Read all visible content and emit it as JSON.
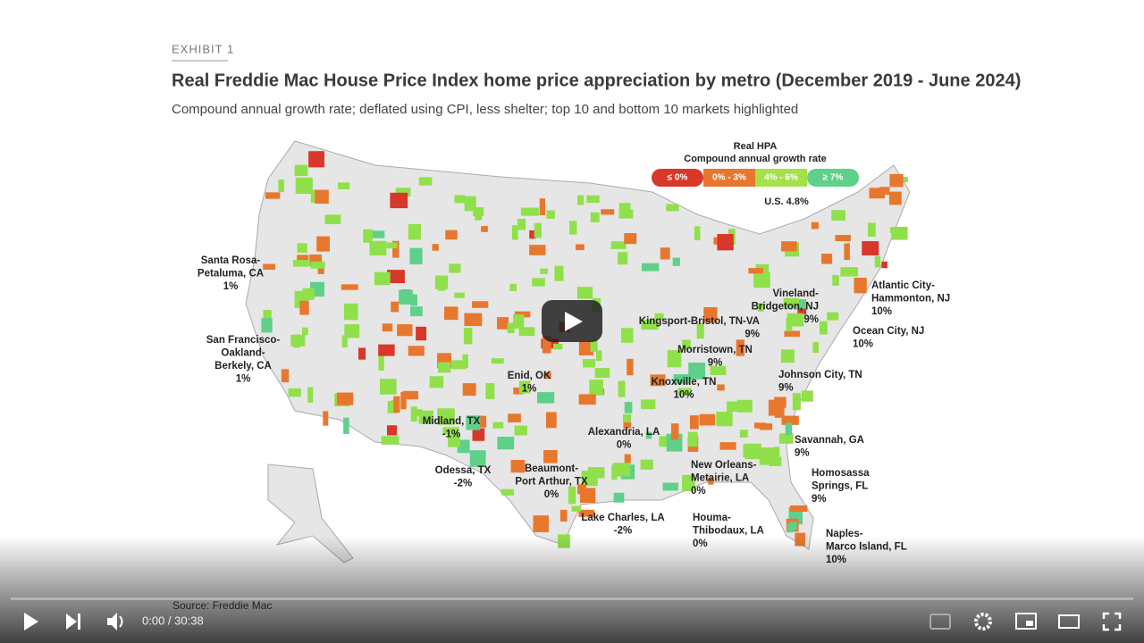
{
  "exhibit": "EXHIBIT 1",
  "title": "Real Freddie Mac House Price Index home price appreciation by metro (December 2019 - June 2024)",
  "subtitle": "Compound annual growth rate; deflated using CPI, less shelter; top 10 and bottom 10 markets highlighted",
  "legend": {
    "title": "Real HPA",
    "subtitle": "Compound annual growth rate",
    "items": [
      "≤ 0%",
      "0% - 3%",
      "4% - 6%",
      "≥ 7%"
    ],
    "us": "U.S. 4.8%"
  },
  "labels": [
    [
      "Santa Rosa-",
      "Petaluma, CA",
      "1%"
    ],
    [
      "San Francisco-",
      "Oakland-",
      "Berkely, CA",
      "1%"
    ],
    [
      "Enid, OK",
      "1%"
    ],
    [
      "Midland, TX",
      "-1%"
    ],
    [
      "Odessa, TX",
      "-2%"
    ],
    [
      "Alexandria, LA",
      "0%"
    ],
    [
      "Beaumont-",
      "Port Arthur, TX",
      "0%"
    ],
    [
      "Lake Charles, LA",
      "-2%"
    ],
    [
      "New Orleans-",
      "Metairie, LA",
      "0%"
    ],
    [
      "Houma-",
      "Thibodaux, LA",
      "0%"
    ],
    [
      "Kingsport-Bristol, TN-VA",
      "9%"
    ],
    [
      "Morristown, TN",
      "9%"
    ],
    [
      "Knoxville, TN",
      "10%"
    ],
    [
      "Johnson City, TN",
      "9%"
    ],
    [
      "Vineland-",
      "Bridgeton, NJ",
      "9%"
    ],
    [
      "Atlantic City-",
      "Hammonton, NJ",
      "10%"
    ],
    [
      "Ocean City, NJ",
      "10%"
    ],
    [
      "Savannah, GA",
      "9%"
    ],
    [
      "Homosassa",
      "Springs, FL",
      "9%"
    ],
    [
      "Naples-",
      "Marco Island, FL",
      "10%"
    ]
  ],
  "source": "Source: Freddie Mac",
  "player": {
    "time": "0:00 / 30:38"
  }
}
